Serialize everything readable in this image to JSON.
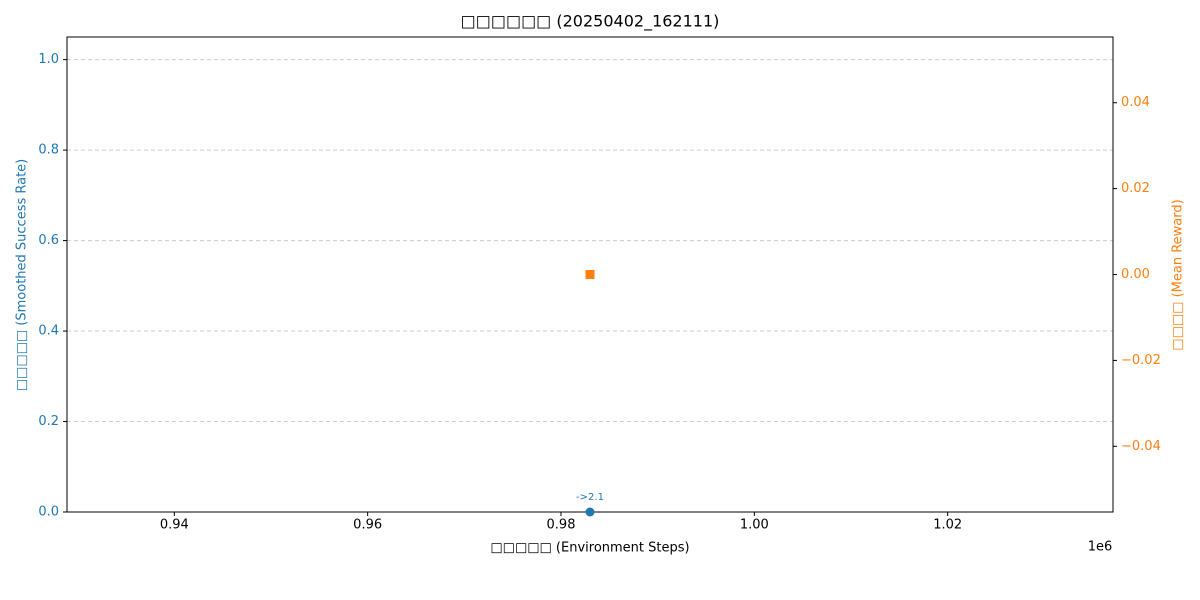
{
  "chart_data": {
    "type": "scatter",
    "title": "□□□□□□ (20250402_162111)",
    "x_label": "□□□□□ (Environment Steps)",
    "y_label": "□□□□□ (Smoothed Success Rate)",
    "y2_label": "□□□□ (Mean Reward)",
    "x": [
      983000
    ],
    "series": [
      {
        "color": "#1f77b4",
        "marker": "circle",
        "values": [
          0
        ]
      },
      {
        "color": "#ff7f0e",
        "marker": "square",
        "axis": "y2",
        "values": [
          0
        ]
      }
    ],
    "annotations": [
      {
        "text": "->2.1",
        "x": 983000,
        "y": 0
      }
    ],
    "xlim": [
      928900,
      1037100
    ],
    "xticks": [
      {
        "value": 940000,
        "label": "0.94"
      },
      {
        "value": 960000,
        "label": "0.96"
      },
      {
        "value": 980000,
        "label": "0.98"
      },
      {
        "value": 1000000,
        "label": "1.00"
      },
      {
        "value": 1020000,
        "label": "1.02"
      }
    ],
    "x_offset_label": "1e6",
    "ylim": [
      0,
      1.05
    ],
    "yticks": [
      {
        "value": 0,
        "label": "0.0"
      },
      0.2,
      0.4,
      0.6,
      0.8,
      {
        "value": 1,
        "label": "1.0"
      }
    ],
    "y2lim": [
      -0.0553,
      0.0553
    ],
    "y2ticks": [
      {
        "value": -0.04,
        "label": "−0.04"
      },
      {
        "value": -0.02,
        "label": "−0.02"
      },
      {
        "value": 0,
        "label": "0.00"
      },
      {
        "value": 0.02,
        "label": "0.02"
      },
      {
        "value": 0.04,
        "label": "0.04"
      }
    ],
    "grid": true
  }
}
